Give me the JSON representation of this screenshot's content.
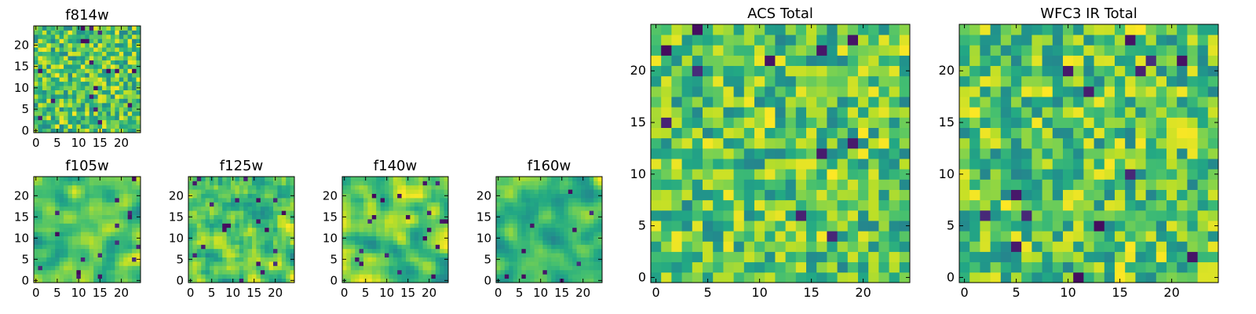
{
  "chart_data": [
    {
      "type": "heatmap",
      "title": "f814w",
      "colormap": "viridis",
      "grid_size": 25,
      "x_ticks": [
        "0",
        "5",
        "10",
        "15",
        "20"
      ],
      "y_ticks": [
        "0",
        "5",
        "10",
        "15",
        "20"
      ],
      "xlim": [
        -0.5,
        24.5
      ],
      "ylim": [
        -0.5,
        24.5
      ],
      "seed": 814,
      "smooth": 0
    },
    {
      "type": "heatmap",
      "title": "f105w",
      "colormap": "viridis",
      "grid_size": 25,
      "x_ticks": [
        "0",
        "5",
        "10",
        "15",
        "20"
      ],
      "y_ticks": [
        "0",
        "5",
        "10",
        "15",
        "20"
      ],
      "xlim": [
        -0.5,
        24.5
      ],
      "ylim": [
        -0.5,
        24.5
      ],
      "seed": 105,
      "smooth": 2
    },
    {
      "type": "heatmap",
      "title": "f125w",
      "colormap": "viridis",
      "grid_size": 25,
      "x_ticks": [
        "0",
        "5",
        "10",
        "15",
        "20"
      ],
      "y_ticks": [
        "0",
        "5",
        "10",
        "15",
        "20"
      ],
      "xlim": [
        -0.5,
        24.5
      ],
      "ylim": [
        -0.5,
        24.5
      ],
      "seed": 125,
      "smooth": 1
    },
    {
      "type": "heatmap",
      "title": "f140w",
      "colormap": "viridis",
      "grid_size": 25,
      "x_ticks": [
        "0",
        "5",
        "10",
        "15",
        "20"
      ],
      "y_ticks": [
        "0",
        "5",
        "10",
        "15",
        "20"
      ],
      "xlim": [
        -0.5,
        24.5
      ],
      "ylim": [
        -0.5,
        24.5
      ],
      "seed": 140,
      "smooth": 2
    },
    {
      "type": "heatmap",
      "title": "f160w",
      "colormap": "viridis",
      "grid_size": 25,
      "x_ticks": [
        "0",
        "5",
        "10",
        "15",
        "20"
      ],
      "y_ticks": [
        "0",
        "5",
        "10",
        "15",
        "20"
      ],
      "xlim": [
        -0.5,
        24.5
      ],
      "ylim": [
        -0.5,
        24.5
      ],
      "seed": 160,
      "smooth": 2
    },
    {
      "type": "heatmap",
      "title": "ACS Total",
      "colormap": "viridis",
      "grid_size": 25,
      "x_ticks": [
        "0",
        "5",
        "10",
        "15",
        "20"
      ],
      "y_ticks": [
        "0",
        "5",
        "10",
        "15",
        "20"
      ],
      "xlim": [
        -0.5,
        24.5
      ],
      "ylim": [
        -0.5,
        24.5
      ],
      "seed": 901,
      "smooth": 0
    },
    {
      "type": "heatmap",
      "title": "WFC3 IR Total",
      "colormap": "viridis",
      "grid_size": 25,
      "x_ticks": [
        "0",
        "5",
        "10",
        "15",
        "20"
      ],
      "y_ticks": [
        "0",
        "5",
        "10",
        "15",
        "20"
      ],
      "xlim": [
        -0.5,
        24.5
      ],
      "ylim": [
        -0.5,
        24.5
      ],
      "seed": 902,
      "smooth": 0
    }
  ]
}
